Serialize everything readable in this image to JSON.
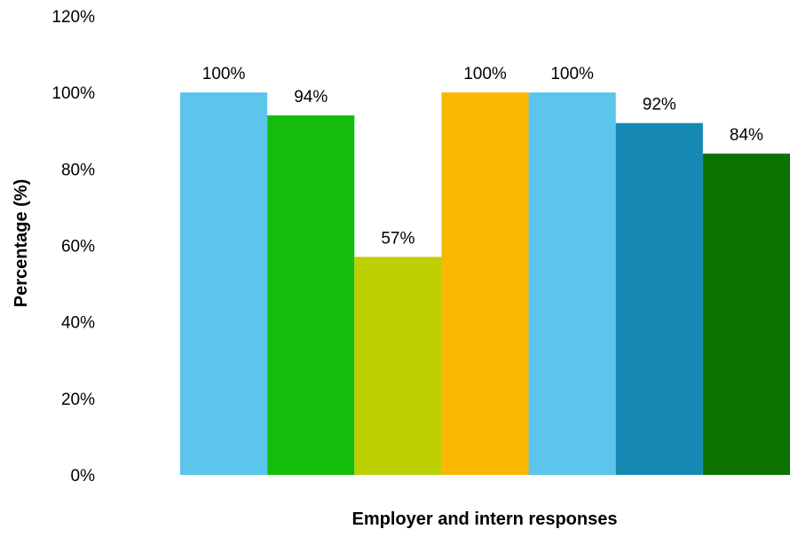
{
  "chart_data": {
    "type": "bar",
    "title": "",
    "xlabel": "Employer and intern responses",
    "ylabel": "Percentage (%)",
    "ylim": [
      0,
      120
    ],
    "ytick_values": [
      0,
      20,
      40,
      60,
      80,
      100,
      120
    ],
    "ytick_labels": [
      "0%",
      "20%",
      "40%",
      "60%",
      "80%",
      "100%",
      "120%"
    ],
    "categories": [
      "",
      "",
      "",
      "",
      "",
      "",
      ""
    ],
    "values": [
      100,
      94,
      57,
      100,
      100,
      92,
      84
    ],
    "data_labels": [
      "100%",
      "94%",
      "57%",
      "100%",
      "100%",
      "92%",
      "84%"
    ],
    "bar_colors": [
      "#5BC5EB",
      "#14BE0A",
      "#BCCF00",
      "#F8B800",
      "#5BC5EB",
      "#1589B4",
      "#0D7300"
    ],
    "grid": false,
    "legend": "none"
  }
}
